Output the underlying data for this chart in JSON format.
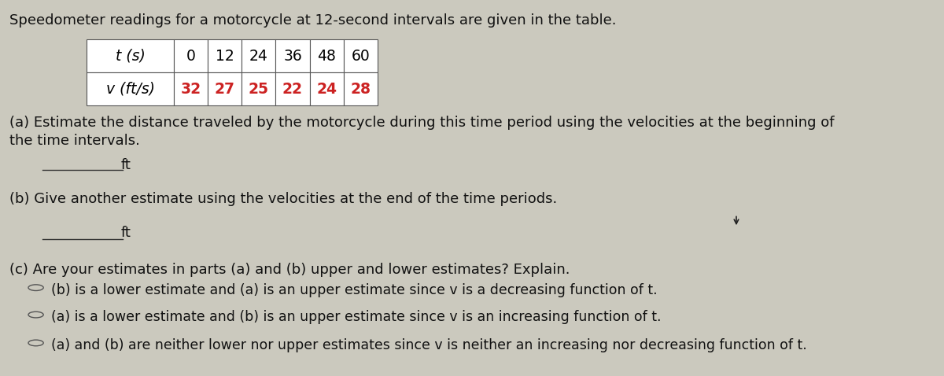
{
  "title": "Speedometer readings for a motorcycle at 12-second intervals are given in the table.",
  "table_t_label": "t (s)",
  "table_v_label": "v (ft/s)",
  "table_t_values": [
    "0",
    "12",
    "24",
    "36",
    "48",
    "60"
  ],
  "table_v_values": [
    "32",
    "27",
    "25",
    "22",
    "24",
    "28"
  ],
  "part_a_text1": "(a) Estimate the distance traveled by the motorcycle during this time period using the velocities at the beginning of",
  "part_a_text2": "the time intervals.",
  "part_a_answer": "ft",
  "part_b_text": "(b) Give another estimate using the velocities at the end of the time periods.",
  "part_b_answer": "ft",
  "part_c_text": "(c) Are your estimates in parts (a) and (b) upper and lower estimates? Explain.",
  "option1": "(b) is a lower estimate and (a) is an upper estimate since v is a decreasing function of t.",
  "option2": "(a) is a lower estimate and (b) is an upper estimate since v is an increasing function of t.",
  "option3": "(a) and (b) are neither lower nor upper estimates since v is neither an increasing nor decreasing function of t.",
  "bg_color": "#cbc9be",
  "table_bg": "#ffffff",
  "table_v_red": "#cc2222",
  "table_border": "#555555",
  "text_color": "#111111",
  "line_color": "#333333",
  "font_size": 13.0,
  "table_font_size": 13.5
}
